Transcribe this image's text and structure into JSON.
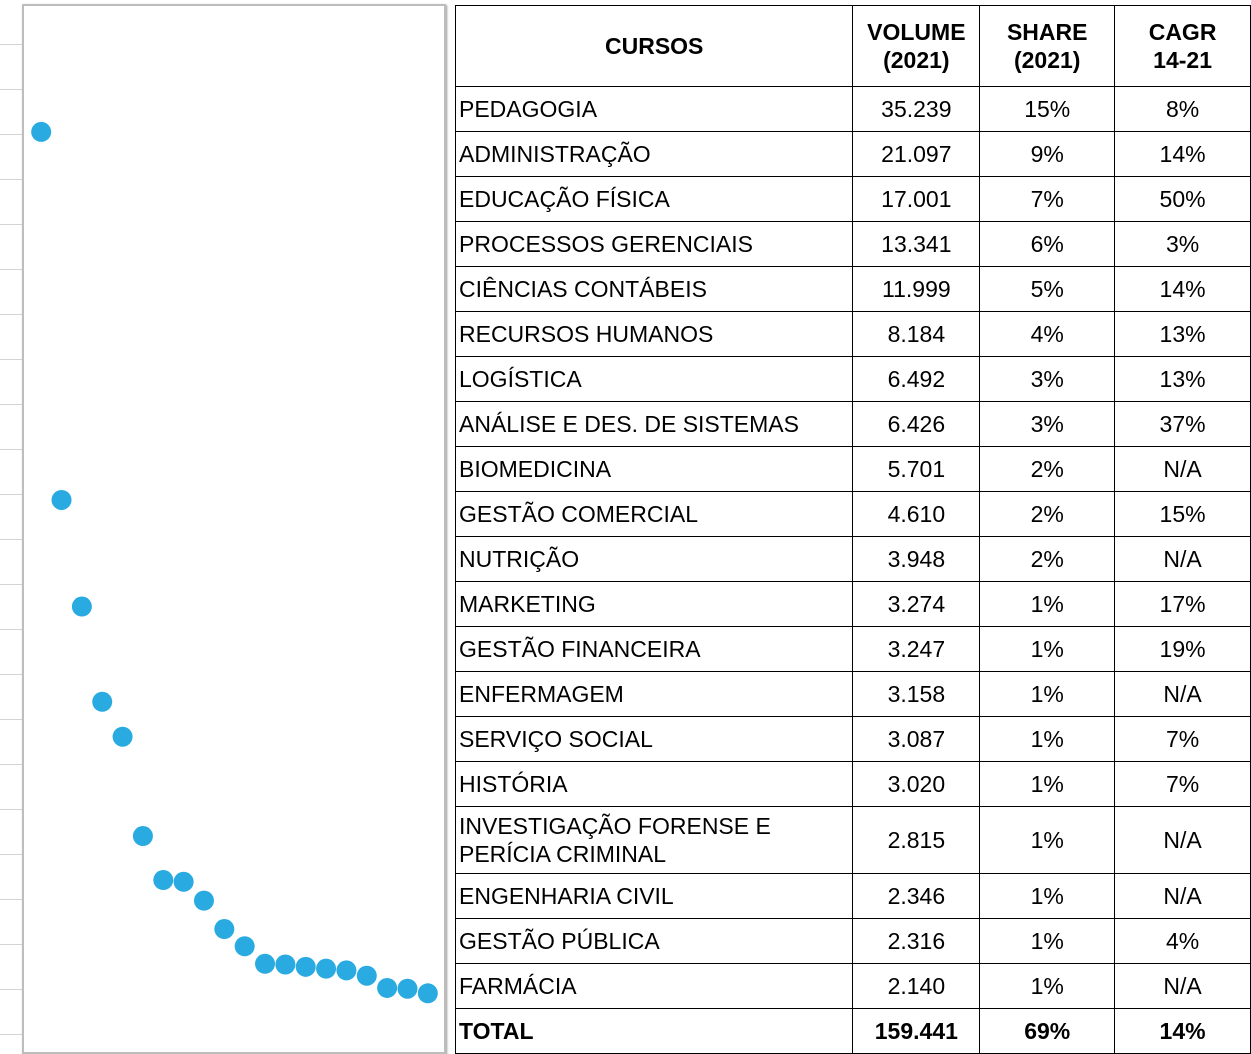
{
  "chart_data": {
    "type": "scatter",
    "categories": [
      null,
      null,
      null,
      null,
      null,
      null,
      null,
      null,
      null,
      null,
      null,
      null,
      null,
      null,
      null,
      null,
      null,
      null,
      null,
      null
    ],
    "values": [
      35239,
      21097,
      17001,
      13341,
      11999,
      8184,
      6492,
      6426,
      5701,
      4610,
      3948,
      3274,
      3247,
      3158,
      3087,
      3020,
      2815,
      2346,
      2316,
      2140
    ],
    "color": "#29abe2",
    "ylim": [
      0,
      40000
    ]
  },
  "table": {
    "header": [
      "CURSOS",
      "VOLUME\n(2021)",
      "SHARE\n(2021)",
      "CAGR\n14-21"
    ],
    "rows": [
      [
        "PEDAGOGIA",
        "35.239",
        "15%",
        "8%"
      ],
      [
        "ADMINISTRAÇÃO",
        "21.097",
        "9%",
        "14%"
      ],
      [
        "EDUCAÇÃO FÍSICA",
        "17.001",
        "7%",
        "50%"
      ],
      [
        "PROCESSOS GERENCIAIS",
        "13.341",
        "6%",
        "3%"
      ],
      [
        "CIÊNCIAS CONTÁBEIS",
        "11.999",
        "5%",
        "14%"
      ],
      [
        "RECURSOS HUMANOS",
        "8.184",
        "4%",
        "13%"
      ],
      [
        "LOGÍSTICA",
        "6.492",
        "3%",
        "13%"
      ],
      [
        "ANÁLISE E DES. DE SISTEMAS",
        "6.426",
        "3%",
        "37%"
      ],
      [
        "BIOMEDICINA",
        "5.701",
        "2%",
        "N/A"
      ],
      [
        "GESTÃO COMERCIAL",
        "4.610",
        "2%",
        "15%"
      ],
      [
        "NUTRIÇÃO",
        "3.948",
        "2%",
        "N/A"
      ],
      [
        "MARKETING",
        "3.274",
        "1%",
        "17%"
      ],
      [
        "GESTÃO FINANCEIRA",
        "3.247",
        "1%",
        "19%"
      ],
      [
        "ENFERMAGEM",
        "3.158",
        "1%",
        "N/A"
      ],
      [
        "SERVIÇO SOCIAL",
        "3.087",
        "1%",
        "7%"
      ],
      [
        "HISTÓRIA",
        "3.020",
        "1%",
        "7%"
      ],
      [
        "INVESTIGAÇÃO FORENSE E\nPERÍCIA CRIMINAL",
        "2.815",
        "1%",
        "N/A"
      ],
      [
        "ENGENHARIA CIVIL",
        "2.346",
        "1%",
        "N/A"
      ],
      [
        "GESTÃO PÚBLICA",
        "2.316",
        "1%",
        "4%"
      ],
      [
        "FARMÁCIA",
        "2.140",
        "1%",
        "N/A"
      ]
    ],
    "total": [
      "TOTAL",
      "159.441",
      "69%",
      "14%"
    ]
  }
}
